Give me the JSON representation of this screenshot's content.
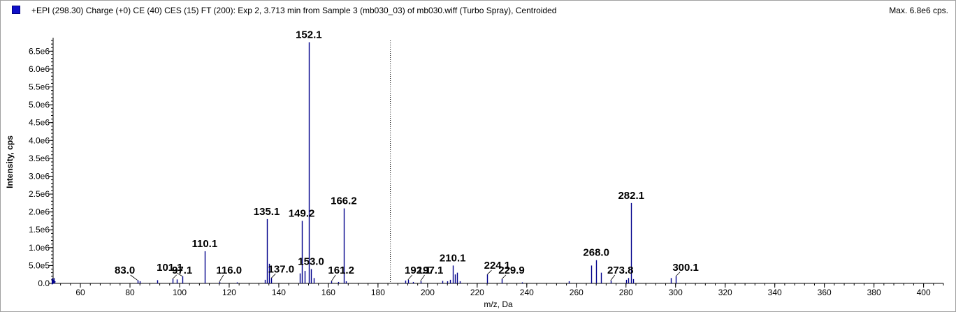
{
  "header": {
    "title": "+EPI (298.30) Charge (+0) CE (40) CES (15) FT (200): Exp 2, 3.713 min from Sample 3 (mb030_03) of mb030.wiff (Turbo Spray), Centroided",
    "max_label": "Max. 6.8e6 cps.",
    "swatch_color": "#1010c8"
  },
  "chart_data": {
    "type": "bar",
    "xlabel": "m/z, Da",
    "ylabel": "Intensity, cps",
    "xlim": [
      49,
      408
    ],
    "ylim": [
      0,
      6800000.0
    ],
    "xticks": [
      60,
      80,
      100,
      120,
      140,
      160,
      180,
      200,
      220,
      240,
      260,
      280,
      300,
      320,
      340,
      360,
      380,
      400
    ],
    "yticks": [
      {
        "value": 0,
        "label": "0.0"
      },
      {
        "value": 500000,
        "label": "5.0e5"
      },
      {
        "value": 1000000,
        "label": "1.0e6"
      },
      {
        "value": 1500000,
        "label": "1.5e6"
      },
      {
        "value": 2000000,
        "label": "2.0e6"
      },
      {
        "value": 2500000,
        "label": "2.5e6"
      },
      {
        "value": 3000000,
        "label": "3.0e6"
      },
      {
        "value": 3500000,
        "label": "3.5e6"
      },
      {
        "value": 4000000,
        "label": "4.0e6"
      },
      {
        "value": 4500000,
        "label": "4.5e6"
      },
      {
        "value": 5000000,
        "label": "5.0e6"
      },
      {
        "value": 5500000,
        "label": "5.5e6"
      },
      {
        "value": 6000000,
        "label": "6.0e6"
      },
      {
        "value": 6500000,
        "label": "6.5e6"
      }
    ],
    "line_color": "#00008b",
    "cursor_x": 185,
    "peaks": [
      {
        "mz": 49.2,
        "intensity": 150000
      },
      {
        "mz": 83.0,
        "intensity": 90000,
        "label": "83.0"
      },
      {
        "mz": 84.0,
        "intensity": 60000
      },
      {
        "mz": 91.0,
        "intensity": 90000
      },
      {
        "mz": 97.1,
        "intensity": 120000,
        "label": "97.1"
      },
      {
        "mz": 99.0,
        "intensity": 110000
      },
      {
        "mz": 101.1,
        "intensity": 200000,
        "label": "101.1"
      },
      {
        "mz": 110.1,
        "intensity": 900000,
        "label": "110.1"
      },
      {
        "mz": 116.0,
        "intensity": 40000,
        "label": "116.0"
      },
      {
        "mz": 123.0,
        "intensity": 30000
      },
      {
        "mz": 134.5,
        "intensity": 100000
      },
      {
        "mz": 135.1,
        "intensity": 1800000,
        "label": "135.1"
      },
      {
        "mz": 136.0,
        "intensity": 550000
      },
      {
        "mz": 137.0,
        "intensity": 150000,
        "label": "137.0"
      },
      {
        "mz": 148.5,
        "intensity": 280000
      },
      {
        "mz": 149.2,
        "intensity": 1750000,
        "label": "149.2"
      },
      {
        "mz": 150.5,
        "intensity": 350000
      },
      {
        "mz": 152.1,
        "intensity": 6750000,
        "label": "152.1"
      },
      {
        "mz": 153.0,
        "intensity": 400000,
        "label": "153.0"
      },
      {
        "mz": 154.0,
        "intensity": 150000
      },
      {
        "mz": 161.2,
        "intensity": 60000,
        "label": "161.2"
      },
      {
        "mz": 164.0,
        "intensity": 40000
      },
      {
        "mz": 166.2,
        "intensity": 2100000,
        "label": "166.2"
      },
      {
        "mz": 167.0,
        "intensity": 60000
      },
      {
        "mz": 191.0,
        "intensity": 80000
      },
      {
        "mz": 192.1,
        "intensity": 100000,
        "label": "192.1"
      },
      {
        "mz": 194.0,
        "intensity": 40000
      },
      {
        "mz": 197.1,
        "intensity": 60000,
        "label": "197.1"
      },
      {
        "mz": 206.0,
        "intensity": 70000
      },
      {
        "mz": 208.0,
        "intensity": 60000
      },
      {
        "mz": 209.0,
        "intensity": 100000
      },
      {
        "mz": 210.1,
        "intensity": 500000,
        "label": "210.1"
      },
      {
        "mz": 211.0,
        "intensity": 250000
      },
      {
        "mz": 212.0,
        "intensity": 300000
      },
      {
        "mz": 213.0,
        "intensity": 60000
      },
      {
        "mz": 224.1,
        "intensity": 250000,
        "label": "224.1"
      },
      {
        "mz": 229.9,
        "intensity": 120000,
        "label": "229.9"
      },
      {
        "mz": 238.0,
        "intensity": 30000
      },
      {
        "mz": 257.0,
        "intensity": 60000
      },
      {
        "mz": 266.0,
        "intensity": 500000
      },
      {
        "mz": 268.0,
        "intensity": 650000,
        "label": "268.0"
      },
      {
        "mz": 270.0,
        "intensity": 300000
      },
      {
        "mz": 273.8,
        "intensity": 80000,
        "label": "273.8"
      },
      {
        "mz": 280.0,
        "intensity": 100000
      },
      {
        "mz": 281.0,
        "intensity": 150000
      },
      {
        "mz": 282.1,
        "intensity": 2250000,
        "label": "282.1"
      },
      {
        "mz": 283.0,
        "intensity": 120000
      },
      {
        "mz": 298.0,
        "intensity": 150000
      },
      {
        "mz": 300.1,
        "intensity": 200000,
        "label": "300.1"
      }
    ]
  }
}
